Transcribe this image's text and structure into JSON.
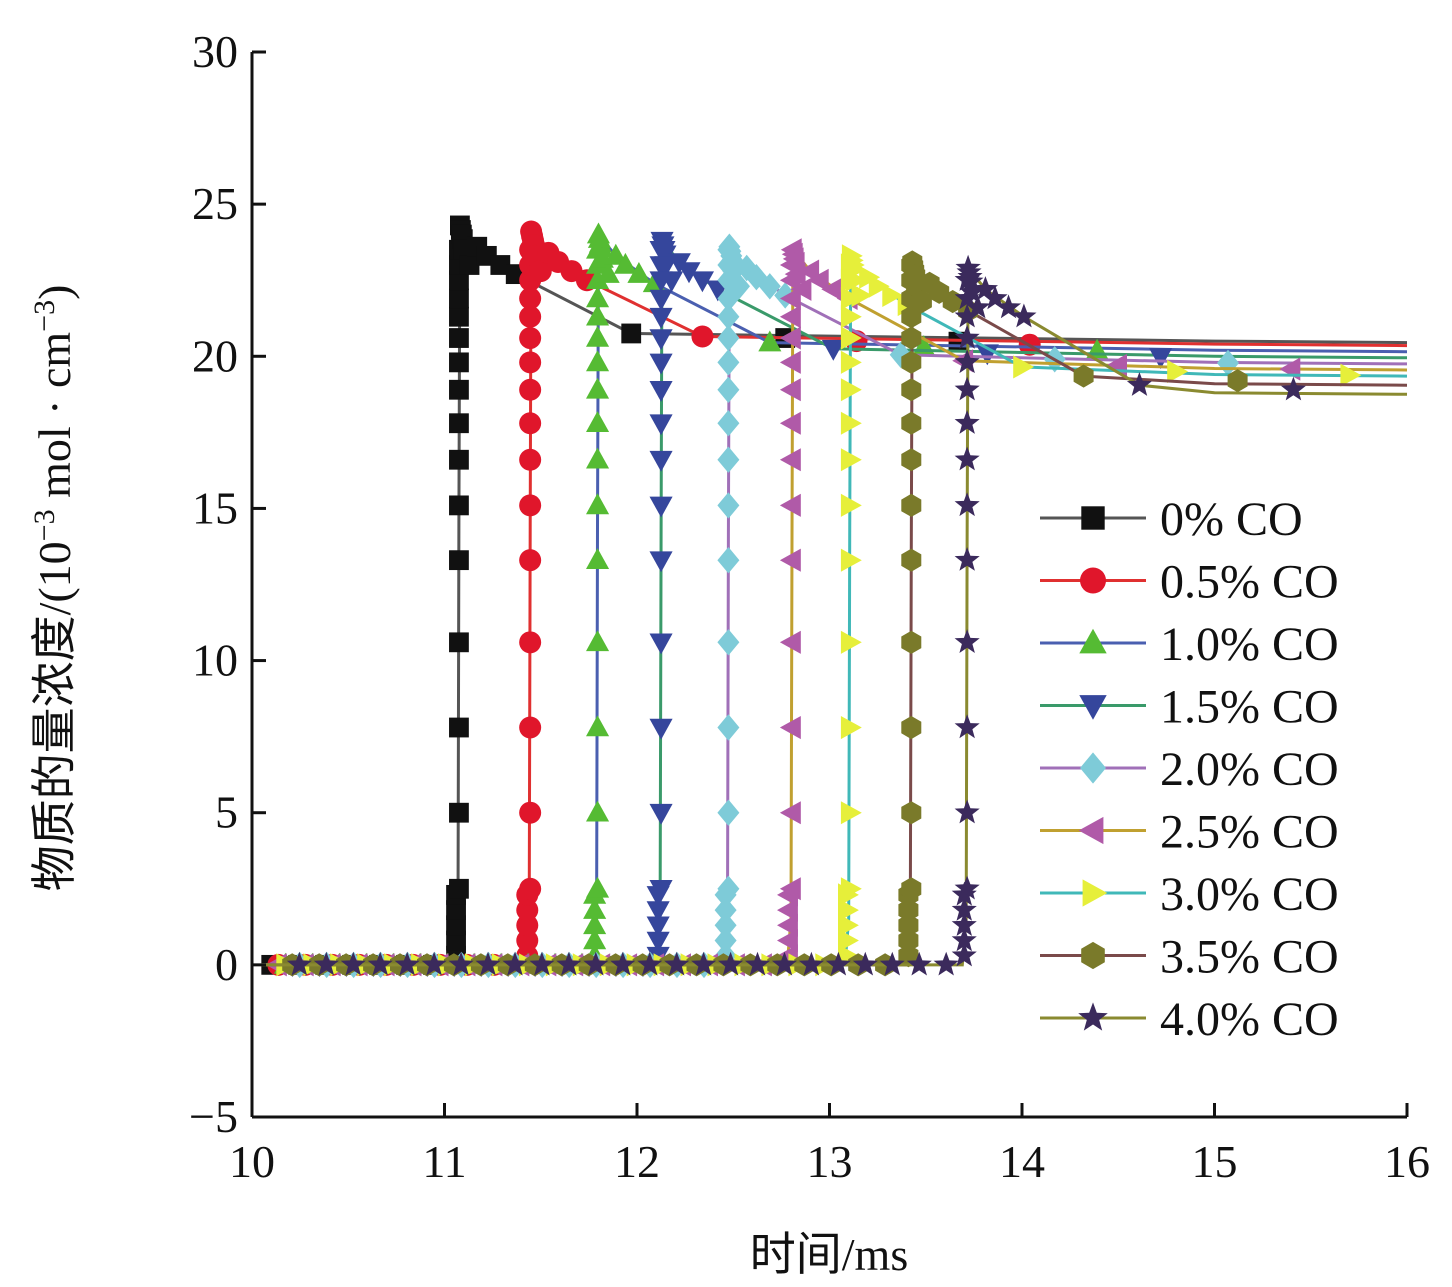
{
  "chart_data": {
    "type": "line",
    "title": "",
    "xlabel": "时间/ms",
    "ylabel_main": "物质的量浓度/(10",
    "ylabel_exp1": "−3",
    "ylabel_mid": " mol · cm",
    "ylabel_exp2": "−3",
    "ylabel_end": ")",
    "xlim": [
      10,
      16
    ],
    "ylim": [
      -5,
      30
    ],
    "xticks": [
      10,
      11,
      12,
      13,
      14,
      15,
      16
    ],
    "yticks": [
      -5,
      0,
      5,
      10,
      15,
      20,
      25,
      30
    ],
    "xtick_labels": [
      "10",
      "11",
      "12",
      "13",
      "14",
      "15",
      "16"
    ],
    "ytick_labels": [
      "−5",
      "0",
      "5",
      "10",
      "15",
      "20",
      "25",
      "30"
    ],
    "legend_position": "center-right",
    "series": [
      {
        "name": "0% CO",
        "ignition": 11.07,
        "peak": 24.3,
        "final": 20.5,
        "line_color": "#555555",
        "marker_color": "#111111",
        "marker": "square"
      },
      {
        "name": "0.5% CO",
        "ignition": 11.44,
        "peak": 24.1,
        "final": 20.4,
        "line_color": "#e03030",
        "marker_color": "#e0162b",
        "marker": "circle"
      },
      {
        "name": "1.0% CO",
        "ignition": 11.79,
        "peak": 24.0,
        "final": 20.2,
        "line_color": "#4a5fb0",
        "marker_color": "#55bb33",
        "marker": "triangle-up"
      },
      {
        "name": "1.5% CO",
        "ignition": 12.12,
        "peak": 23.8,
        "final": 20.0,
        "line_color": "#3a9a6a",
        "marker_color": "#35469c",
        "marker": "triangle-down"
      },
      {
        "name": "2.0% CO",
        "ignition": 12.47,
        "peak": 23.6,
        "final": 19.8,
        "line_color": "#a070b8",
        "marker_color": "#7ecbd8",
        "marker": "diamond"
      },
      {
        "name": "2.5% CO",
        "ignition": 12.8,
        "peak": 23.5,
        "final": 19.6,
        "line_color": "#c0a030",
        "marker_color": "#b05aa8",
        "marker": "triangle-left"
      },
      {
        "name": "3.0% CO",
        "ignition": 13.1,
        "peak": 23.3,
        "final": 19.4,
        "line_color": "#40b8b8",
        "marker_color": "#e6ef3a",
        "marker": "triangle-right"
      },
      {
        "name": "3.5% CO",
        "ignition": 13.42,
        "peak": 23.1,
        "final": 19.1,
        "line_color": "#7a4a4a",
        "marker_color": "#7a7a2a",
        "marker": "hexagon"
      },
      {
        "name": "4.0% CO",
        "ignition": 13.71,
        "peak": 22.9,
        "final": 18.8,
        "line_color": "#8a8a30",
        "marker_color": "#3b2a5c",
        "marker": "star"
      }
    ]
  }
}
